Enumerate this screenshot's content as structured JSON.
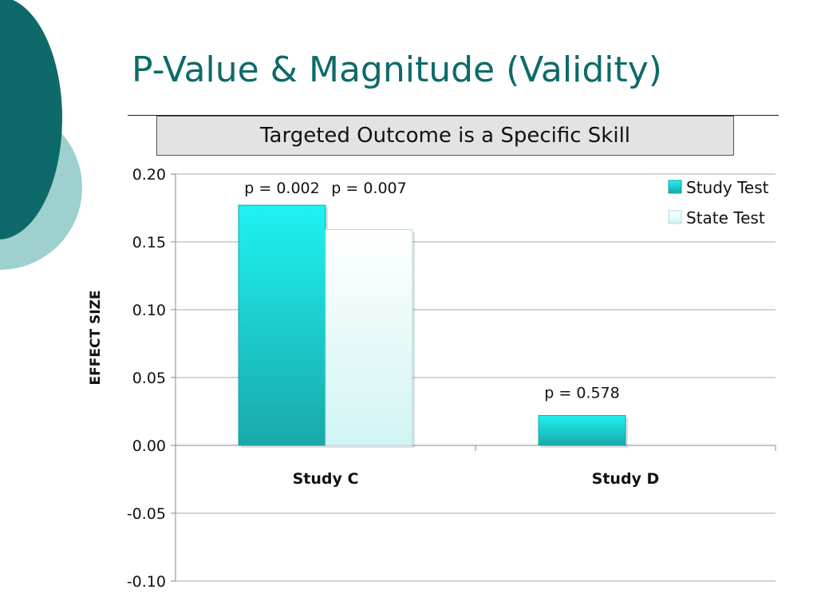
{
  "slide": {
    "title": "P-Value & Magnitude (Validity)",
    "subtitle": "Targeted Outcome is a Specific Skill"
  },
  "colors": {
    "accent_dark": "#0e6a6a",
    "accent_light": "#9fd0d0",
    "study_test": "#22d4d6",
    "state_test": "#e6fbfb"
  },
  "chart_data": {
    "type": "bar",
    "categories": [
      "Study C",
      "Study D"
    ],
    "series": [
      {
        "name": "Study Test",
        "values": [
          0.177,
          0.022
        ],
        "color": "#22d4d6"
      },
      {
        "name": "State Test",
        "values": [
          0.159,
          null
        ],
        "color": "#e6fbfb"
      }
    ],
    "annotations": [
      {
        "text": "p = 0.002",
        "category": "Study C",
        "series": "Study Test"
      },
      {
        "text": "p = 0.007",
        "category": "Study C",
        "series": "State Test"
      },
      {
        "text": "p = 0.578",
        "category": "Study D",
        "series": "Study Test"
      }
    ],
    "ylabel": "EFFECT SIZE",
    "xlabel": "",
    "ylim": [
      -0.1,
      0.2
    ],
    "yticks": [
      "0.20",
      "0.15",
      "0.10",
      "0.05",
      "0.00",
      "-0.05",
      "-0.10"
    ],
    "grid": true,
    "legend_position": "top-right"
  }
}
